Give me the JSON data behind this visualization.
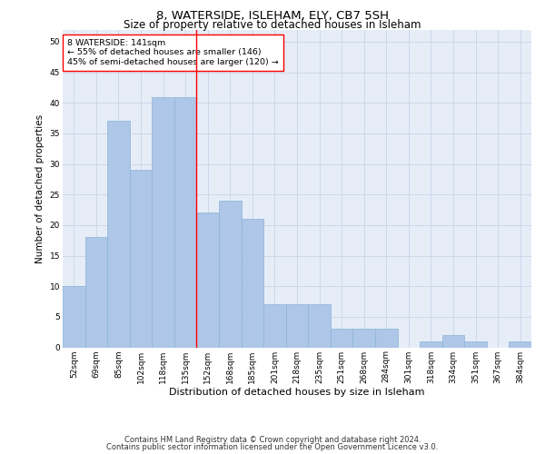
{
  "title": "8, WATERSIDE, ISLEHAM, ELY, CB7 5SH",
  "subtitle": "Size of property relative to detached houses in Isleham",
  "xlabel": "Distribution of detached houses by size in Isleham",
  "ylabel": "Number of detached properties",
  "categories": [
    "52sqm",
    "69sqm",
    "85sqm",
    "102sqm",
    "118sqm",
    "135sqm",
    "152sqm",
    "168sqm",
    "185sqm",
    "201sqm",
    "218sqm",
    "235sqm",
    "251sqm",
    "268sqm",
    "284sqm",
    "301sqm",
    "318sqm",
    "334sqm",
    "351sqm",
    "367sqm",
    "384sqm"
  ],
  "values": [
    10,
    18,
    37,
    29,
    41,
    41,
    22,
    24,
    21,
    7,
    7,
    7,
    3,
    3,
    3,
    0,
    1,
    2,
    1,
    0,
    1
  ],
  "bar_color": "#aec6e8",
  "bar_edge_color": "#8ab4d8",
  "bar_linewidth": 0.5,
  "vline_x": 5.5,
  "vline_color": "red",
  "vline_linewidth": 1.0,
  "annotation_text": "8 WATERSIDE: 141sqm\n← 55% of detached houses are smaller (146)\n45% of semi-detached houses are larger (120) →",
  "annotation_box_color": "white",
  "annotation_box_edge": "red",
  "ylim": [
    0,
    52
  ],
  "yticks": [
    0,
    5,
    10,
    15,
    20,
    25,
    30,
    35,
    40,
    45,
    50
  ],
  "grid_color": "#c8d4e8",
  "background_color": "#e6edf7",
  "footer_line1": "Contains HM Land Registry data © Crown copyright and database right 2024.",
  "footer_line2": "Contains public sector information licensed under the Open Government Licence v3.0.",
  "title_fontsize": 9.5,
  "subtitle_fontsize": 8.5,
  "tick_fontsize": 6.5,
  "xlabel_fontsize": 8,
  "ylabel_fontsize": 7.5,
  "annotation_fontsize": 6.8,
  "footer_fontsize": 6.0
}
